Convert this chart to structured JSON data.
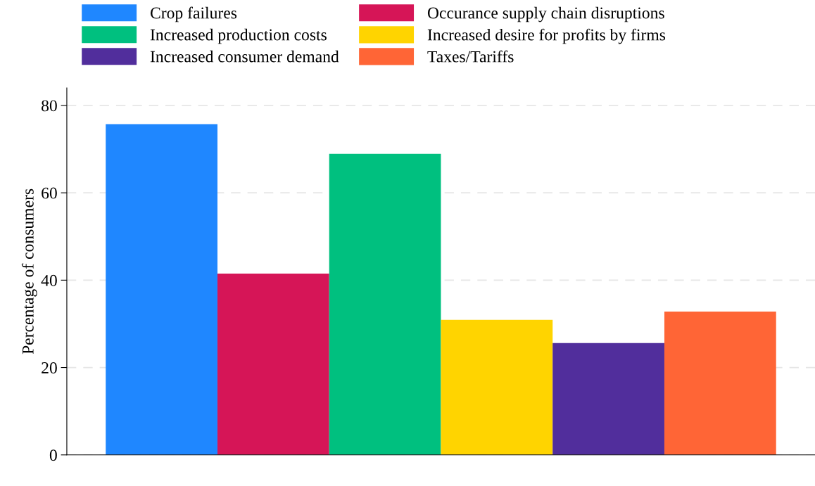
{
  "chart_data": {
    "type": "bar",
    "ylabel": "Percentage of consumers",
    "categories": [
      null
    ],
    "series": [
      {
        "name": "Crop failures",
        "color": "#1f87ff",
        "values": [
          75.7
        ]
      },
      {
        "name": "Occurance supply chain disruptions",
        "color": "#d61557",
        "values": [
          41.5
        ]
      },
      {
        "name": "Increased production costs",
        "color": "#00c07f",
        "values": [
          68.9
        ]
      },
      {
        "name": "Increased desire for profits by firms",
        "color": "#ffd400",
        "values": [
          30.9
        ]
      },
      {
        "name": "Increased consumer demand",
        "color": "#512e9c",
        "values": [
          25.6
        ]
      },
      {
        "name": "Taxes/Tariffs",
        "color": "#ff6536",
        "values": [
          32.8
        ]
      }
    ],
    "ylim": [
      0,
      84
    ],
    "yticks": [
      0,
      20,
      40,
      60,
      80
    ],
    "grid": "y",
    "legend": "top"
  }
}
